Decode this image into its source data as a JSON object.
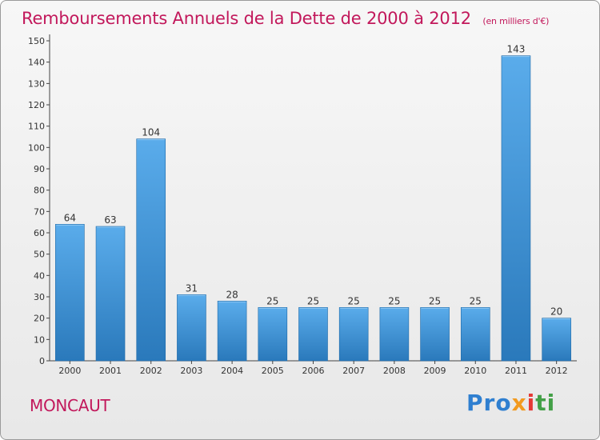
{
  "header": {
    "title": "Remboursements Annuels de la Dette de 2000 à 2012",
    "unit": "(en milliers d'€)"
  },
  "footer": {
    "commune": "MONCAUT",
    "brand": [
      "Pro",
      "x",
      "i",
      "ti"
    ]
  },
  "colors": {
    "title": "#c2185b",
    "bar_light": "#5aaceb",
    "bar_dark": "#2a79bb",
    "axis": "#444444",
    "grid": "#d8d8d8"
  },
  "chart_data": {
    "type": "bar",
    "title": "Remboursements Annuels de la Dette de 2000 à 2012",
    "xlabel": "",
    "ylabel": "",
    "categories": [
      "2000",
      "2001",
      "2002",
      "2003",
      "2004",
      "2005",
      "2006",
      "2007",
      "2008",
      "2009",
      "2010",
      "2011",
      "2012"
    ],
    "values": [
      64,
      63,
      104,
      31,
      28,
      25,
      25,
      25,
      25,
      25,
      25,
      143,
      20
    ],
    "data_labels": [
      "64",
      "63",
      "104",
      "31",
      "28",
      "25",
      "25",
      "25",
      "25",
      "25",
      "25",
      "143",
      "20"
    ],
    "ylim": [
      0,
      150
    ],
    "yticks": [
      0,
      10,
      20,
      30,
      40,
      50,
      60,
      70,
      80,
      90,
      100,
      110,
      120,
      130,
      140,
      150
    ],
    "grid": false,
    "legend": "none"
  }
}
